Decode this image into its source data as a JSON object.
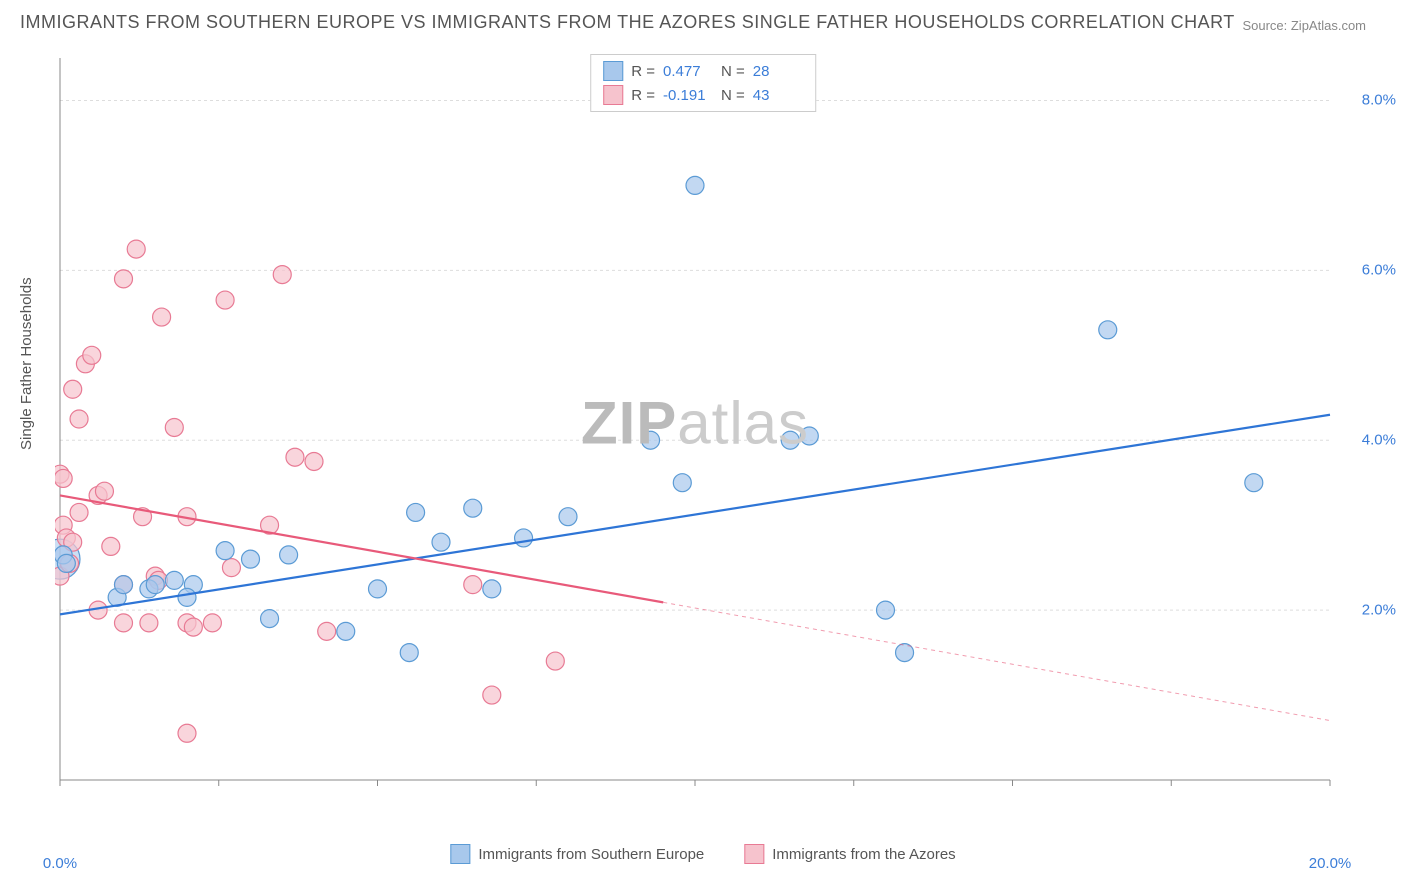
{
  "title": "IMMIGRANTS FROM SOUTHERN EUROPE VS IMMIGRANTS FROM THE AZORES SINGLE FATHER HOUSEHOLDS CORRELATION CHART",
  "source": "Source: ZipAtlas.com",
  "y_axis_label": "Single Father Households",
  "watermark_bold": "ZIP",
  "watermark_light": "atlas",
  "chart": {
    "type": "scatter",
    "background_color": "#ffffff",
    "grid_color": "#dddddd",
    "border_color": "#888888",
    "xlim": [
      0,
      20
    ],
    "ylim": [
      0,
      8.5
    ],
    "x_ticks": [
      0,
      2.5,
      5,
      7.5,
      10,
      12.5,
      15,
      17.5,
      20
    ],
    "x_tick_labels": {
      "0": "0.0%",
      "20": "20.0%"
    },
    "y_ticks": [
      2,
      4,
      6,
      8
    ],
    "y_tick_labels": {
      "2": "2.0%",
      "4": "4.0%",
      "6": "6.0%",
      "8": "8.0%"
    },
    "marker_radius": 9,
    "marker_stroke_width": 1.2,
    "line_width": 2.2,
    "series": [
      {
        "name": "Immigrants from Southern Europe",
        "R": "0.477",
        "N": "28",
        "fill_color": "#a8c8ec",
        "stroke_color": "#5b9bd5",
        "line_color": "#2e75d6",
        "points": [
          [
            0.05,
            2.65
          ],
          [
            0.1,
            2.55
          ],
          [
            0.9,
            2.15
          ],
          [
            1.0,
            2.3
          ],
          [
            1.4,
            2.25
          ],
          [
            1.5,
            2.3
          ],
          [
            1.8,
            2.35
          ],
          [
            2.1,
            2.3
          ],
          [
            2.0,
            2.15
          ],
          [
            2.6,
            2.7
          ],
          [
            3.0,
            2.6
          ],
          [
            3.3,
            1.9
          ],
          [
            3.6,
            2.65
          ],
          [
            4.5,
            1.75
          ],
          [
            5.0,
            2.25
          ],
          [
            5.5,
            1.5
          ],
          [
            5.6,
            3.15
          ],
          [
            6.0,
            2.8
          ],
          [
            6.5,
            3.2
          ],
          [
            6.8,
            2.25
          ],
          [
            7.3,
            2.85
          ],
          [
            8.0,
            3.1
          ],
          [
            9.3,
            4.0
          ],
          [
            9.8,
            3.5
          ],
          [
            10.0,
            7.0
          ],
          [
            11.5,
            4.0
          ],
          [
            11.8,
            4.05
          ],
          [
            13.0,
            2.0
          ],
          [
            13.3,
            1.5
          ],
          [
            16.5,
            5.3
          ],
          [
            18.8,
            3.5
          ]
        ],
        "big_point": [
          0.0,
          2.6
        ],
        "big_radius": 20,
        "trend": {
          "x1": 0,
          "y1": 1.95,
          "x2": 20,
          "y2": 4.3
        },
        "data_xmax": 20
      },
      {
        "name": "Immigrants from the Azores",
        "R": "-0.191",
        "N": "43",
        "fill_color": "#f6c3cd",
        "stroke_color": "#e87a94",
        "line_color": "#e85a7a",
        "points": [
          [
            0.0,
            2.4
          ],
          [
            0.0,
            3.6
          ],
          [
            0.05,
            3.0
          ],
          [
            0.05,
            3.55
          ],
          [
            0.1,
            2.85
          ],
          [
            0.15,
            2.55
          ],
          [
            0.2,
            4.6
          ],
          [
            0.2,
            2.8
          ],
          [
            0.3,
            3.15
          ],
          [
            0.3,
            4.25
          ],
          [
            0.4,
            4.9
          ],
          [
            0.5,
            5.0
          ],
          [
            0.6,
            3.35
          ],
          [
            0.6,
            2.0
          ],
          [
            0.7,
            3.4
          ],
          [
            0.8,
            2.75
          ],
          [
            1.0,
            2.3
          ],
          [
            1.0,
            1.85
          ],
          [
            1.0,
            5.9
          ],
          [
            1.2,
            6.25
          ],
          [
            1.3,
            3.1
          ],
          [
            1.4,
            1.85
          ],
          [
            1.5,
            2.4
          ],
          [
            1.55,
            2.35
          ],
          [
            1.6,
            5.45
          ],
          [
            1.8,
            4.15
          ],
          [
            2.0,
            1.85
          ],
          [
            2.0,
            3.1
          ],
          [
            2.0,
            0.55
          ],
          [
            2.1,
            1.8
          ],
          [
            2.4,
            1.85
          ],
          [
            2.6,
            5.65
          ],
          [
            2.7,
            2.5
          ],
          [
            3.3,
            3.0
          ],
          [
            3.5,
            5.95
          ],
          [
            3.7,
            3.8
          ],
          [
            4.0,
            3.75
          ],
          [
            4.2,
            1.75
          ],
          [
            6.5,
            2.3
          ],
          [
            6.8,
            1.0
          ],
          [
            7.8,
            1.4
          ]
        ],
        "trend": {
          "x1": 0,
          "y1": 3.35,
          "x2": 20,
          "y2": 0.7
        },
        "data_xmax": 9.5
      }
    ]
  },
  "legend_top": {
    "R_label": "R =",
    "N_label": "N ="
  }
}
